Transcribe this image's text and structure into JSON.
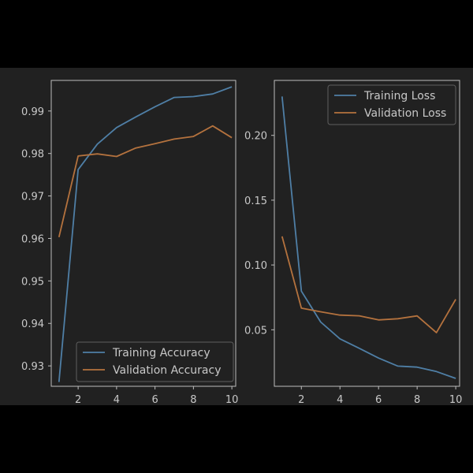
{
  "colors": {
    "background": "#212121",
    "axes_frame": "#bdbdbd",
    "tick_text": "#c8c8c8",
    "training": "#4f7fa6",
    "validation": "#b4723e"
  },
  "chart_data": [
    {
      "type": "line",
      "title": "",
      "xlabel": "",
      "ylabel": "",
      "x": [
        1,
        2,
        3,
        4,
        5,
        6,
        7,
        8,
        9,
        10
      ],
      "xlim": [
        0.6,
        10.2
      ],
      "ylim": [
        0.9252,
        0.9972
      ],
      "xticks": [
        2,
        4,
        6,
        8,
        10
      ],
      "yticks": [
        0.93,
        0.94,
        0.95,
        0.96,
        0.97,
        0.98,
        0.99
      ],
      "ytick_labels": [
        "0.93",
        "0.94",
        "0.95",
        "0.96",
        "0.97",
        "0.98",
        "0.99"
      ],
      "grid": false,
      "legend_position": "bottom-right",
      "series": [
        {
          "name": "Training Accuracy",
          "values": [
            0.9262,
            0.9762,
            0.9822,
            0.9861,
            0.9886,
            0.991,
            0.9932,
            0.9934,
            0.994,
            0.9957
          ]
        },
        {
          "name": "Validation Accuracy",
          "values": [
            0.9603,
            0.9794,
            0.9799,
            0.9793,
            0.9813,
            0.9823,
            0.9834,
            0.984,
            0.9865,
            0.9837
          ]
        }
      ]
    },
    {
      "type": "line",
      "title": "",
      "xlabel": "",
      "ylabel": "",
      "x": [
        1,
        2,
        3,
        4,
        5,
        6,
        7,
        8,
        9,
        10
      ],
      "xlim": [
        0.6,
        10.2
      ],
      "ylim": [
        0.0064,
        0.2424
      ],
      "xticks": [
        2,
        4,
        6,
        8,
        10
      ],
      "yticks": [
        0.05,
        0.1,
        0.15,
        0.2
      ],
      "ytick_labels": [
        "0.05",
        "0.10",
        "0.15",
        "0.20"
      ],
      "grid": false,
      "legend_position": "top-right",
      "series": [
        {
          "name": "Training Loss",
          "values": [
            0.23,
            0.0798,
            0.056,
            0.043,
            0.0357,
            0.0282,
            0.022,
            0.0212,
            0.0178,
            0.0125
          ]
        },
        {
          "name": "Validation Loss",
          "values": [
            0.122,
            0.0667,
            0.0639,
            0.0613,
            0.0608,
            0.0576,
            0.0585,
            0.0607,
            0.0478,
            0.0735
          ]
        }
      ]
    }
  ]
}
